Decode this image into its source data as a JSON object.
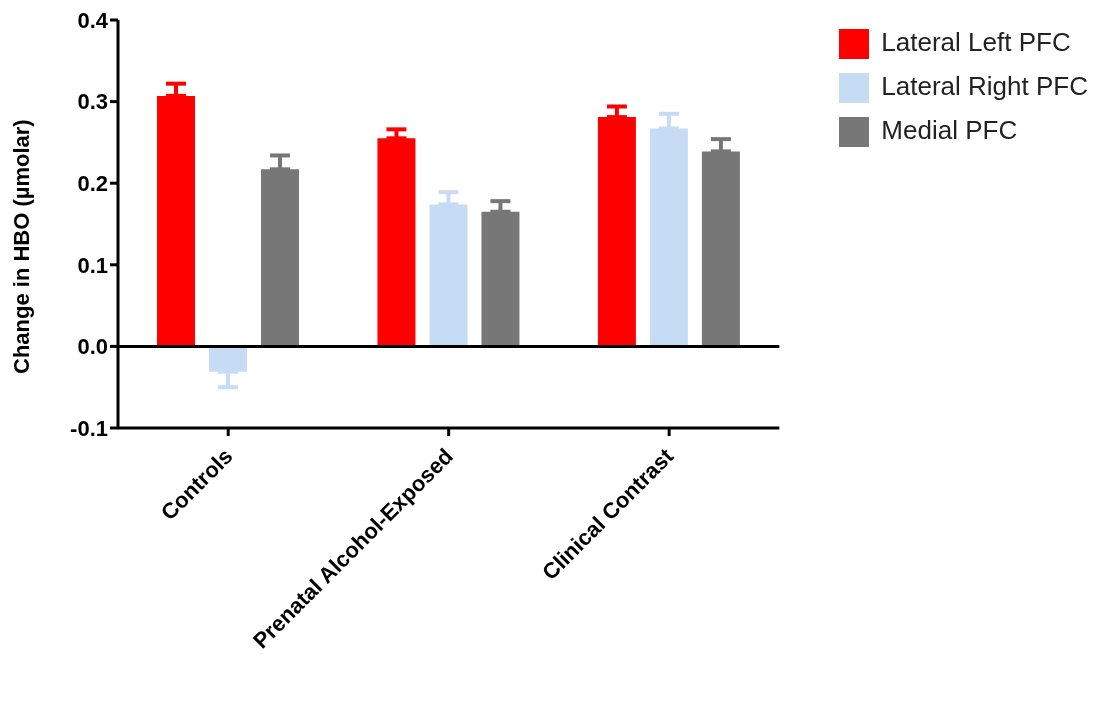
{
  "chart_data": {
    "type": "bar",
    "ylabel": "Change in HBO (µmolar)",
    "categories": [
      "Controls",
      "Prenatal Alcohol-Exposed",
      "Clinical Contrast"
    ],
    "series": [
      {
        "name": "Lateral Left PFC",
        "color": "#ff0000",
        "values": [
          0.307,
          0.255,
          0.281
        ],
        "errors": [
          [
            0.307,
            0.322
          ],
          [
            0.255,
            0.266
          ],
          [
            0.281,
            0.294
          ]
        ]
      },
      {
        "name": "Lateral Right PFC",
        "color": "#c6dcf5",
        "values": [
          -0.031,
          0.174,
          0.267
        ],
        "errors": [
          [
            -0.05,
            -0.031
          ],
          [
            0.174,
            0.189
          ],
          [
            0.267,
            0.285
          ]
        ]
      },
      {
        "name": "Medial PFC",
        "color": "#777777",
        "values": [
          0.217,
          0.165,
          0.239
        ],
        "errors": [
          [
            0.217,
            0.234
          ],
          [
            0.165,
            0.178
          ],
          [
            0.239,
            0.254
          ]
        ]
      }
    ],
    "ylim": [
      -0.1,
      0.4
    ],
    "yticks": [
      -0.1,
      {
        "value": 0,
        "label": "0.0"
      },
      0.1,
      0.2,
      0.3,
      0.4
    ],
    "ref_lines": [
      {
        "axis": "y",
        "value": 0
      }
    ],
    "grid": false,
    "legend": "top right"
  }
}
